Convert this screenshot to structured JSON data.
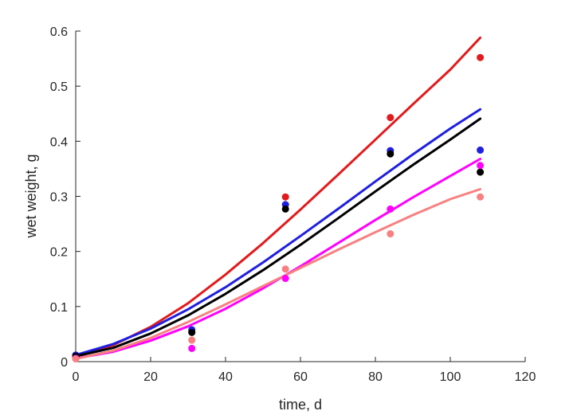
{
  "chart_data": {
    "type": "scatter",
    "xlabel": "time, d",
    "ylabel": "wet weight, g",
    "xlim": [
      0,
      120
    ],
    "ylim": [
      0,
      0.6
    ],
    "xticks": [
      "0",
      "20",
      "40",
      "60",
      "80",
      "100",
      "120"
    ],
    "yticks": [
      "0",
      "0.1",
      "0.2",
      "0.3",
      "0.4",
      "0.5",
      "0.6"
    ],
    "grid": false,
    "legend": "none",
    "series": [
      {
        "color": "#e31a1c",
        "points": {
          "x": [
            0,
            31,
            56,
            84,
            108
          ],
          "y": [
            0.008,
            0.055,
            0.299,
            0.443,
            0.552
          ]
        },
        "curve": {
          "x": [
            0,
            10,
            20,
            30,
            40,
            50,
            60,
            70,
            80,
            90,
            100,
            108
          ],
          "y": [
            0.008,
            0.03,
            0.063,
            0.106,
            0.158,
            0.215,
            0.276,
            0.339,
            0.403,
            0.467,
            0.53,
            0.588
          ]
        }
      },
      {
        "color": "#1f1fe0",
        "points": {
          "x": [
            0,
            31,
            56,
            84,
            108
          ],
          "y": [
            0.012,
            0.058,
            0.285,
            0.383,
            0.384
          ]
        },
        "curve": {
          "x": [
            0,
            10,
            20,
            30,
            40,
            50,
            60,
            70,
            80,
            90,
            100,
            108
          ],
          "y": [
            0.012,
            0.032,
            0.06,
            0.095,
            0.135,
            0.18,
            0.228,
            0.277,
            0.327,
            0.376,
            0.423,
            0.458
          ]
        }
      },
      {
        "color": "#000000",
        "points": {
          "x": [
            0,
            31,
            56,
            84,
            108
          ],
          "y": [
            0.01,
            0.053,
            0.277,
            0.377,
            0.344
          ]
        },
        "curve": {
          "x": [
            0,
            10,
            20,
            30,
            40,
            50,
            60,
            70,
            80,
            90,
            100,
            108
          ],
          "y": [
            0.01,
            0.025,
            0.051,
            0.084,
            0.123,
            0.166,
            0.212,
            0.26,
            0.309,
            0.357,
            0.403,
            0.441
          ]
        }
      },
      {
        "color": "#ff00ff",
        "points": {
          "x": [
            0,
            31,
            56,
            84,
            108
          ],
          "y": [
            0.006,
            0.024,
            0.151,
            0.277,
            0.356
          ]
        },
        "curve": {
          "x": [
            0,
            10,
            20,
            30,
            40,
            50,
            60,
            70,
            80,
            90,
            100,
            108
          ],
          "y": [
            0.006,
            0.018,
            0.038,
            0.064,
            0.096,
            0.133,
            0.173,
            0.215,
            0.257,
            0.298,
            0.337,
            0.368
          ]
        }
      },
      {
        "color": "#f88080",
        "points": {
          "x": [
            0,
            31,
            56,
            84,
            108
          ],
          "y": [
            0.005,
            0.039,
            0.168,
            0.232,
            0.299
          ]
        },
        "curve": {
          "x": [
            0,
            10,
            20,
            30,
            40,
            50,
            60,
            70,
            80,
            90,
            100,
            108
          ],
          "y": [
            0.005,
            0.02,
            0.043,
            0.072,
            0.104,
            0.137,
            0.17,
            0.203,
            0.235,
            0.266,
            0.295,
            0.313
          ]
        }
      }
    ]
  }
}
